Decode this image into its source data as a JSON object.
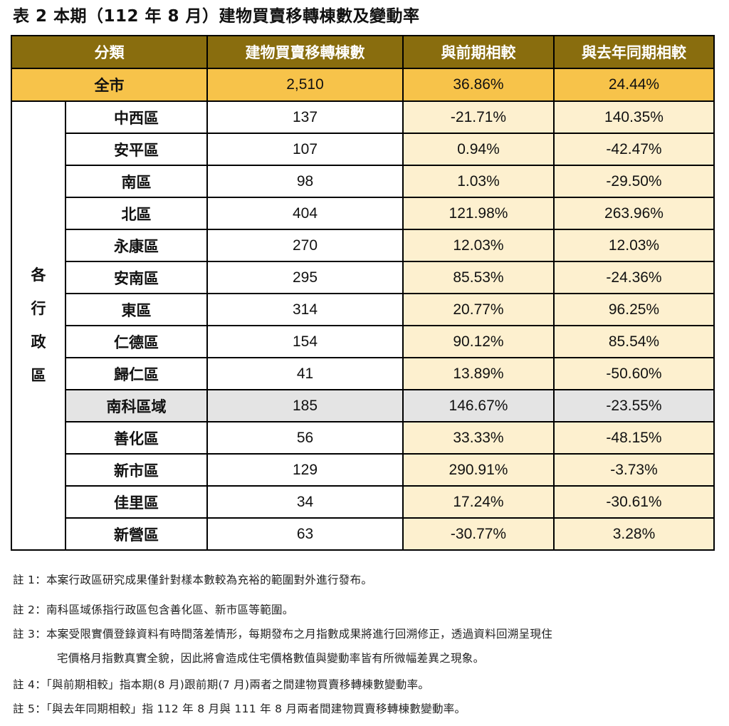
{
  "title": "表 2 本期（112 年 8 月）建物買賣移轉棟數及變動率",
  "headers": [
    "分類",
    "建物買賣移轉棟數",
    "與前期相較",
    "與去年同期相較"
  ],
  "total": {
    "name": "全市",
    "count": "2,510",
    "prev": "36.86%",
    "yoy": "24.44%"
  },
  "group_label": [
    "各",
    "行",
    "政",
    "區"
  ],
  "rows": [
    {
      "name": "中西區",
      "count": "137",
      "prev": "-21.71%",
      "yoy": "140.35%"
    },
    {
      "name": "安平區",
      "count": "107",
      "prev": "0.94%",
      "yoy": "-42.47%"
    },
    {
      "name": "南區",
      "count": "98",
      "prev": "1.03%",
      "yoy": "-29.50%"
    },
    {
      "name": "北區",
      "count": "404",
      "prev": "121.98%",
      "yoy": "263.96%"
    },
    {
      "name": "永康區",
      "count": "270",
      "prev": "12.03%",
      "yoy": "12.03%"
    },
    {
      "name": "安南區",
      "count": "295",
      "prev": "85.53%",
      "yoy": "-24.36%"
    },
    {
      "name": "東區",
      "count": "314",
      "prev": "20.77%",
      "yoy": "96.25%"
    },
    {
      "name": "仁德區",
      "count": "154",
      "prev": "90.12%",
      "yoy": "85.54%"
    },
    {
      "name": "歸仁區",
      "count": "41",
      "prev": "13.89%",
      "yoy": "-50.60%"
    },
    {
      "name": "南科區域",
      "count": "185",
      "prev": "146.67%",
      "yoy": "-23.55%"
    },
    {
      "name": "善化區",
      "count": "56",
      "prev": "33.33%",
      "yoy": "-48.15%"
    },
    {
      "name": "新市區",
      "count": "129",
      "prev": "290.91%",
      "yoy": "-3.73%"
    },
    {
      "name": "佳里區",
      "count": "34",
      "prev": "17.24%",
      "yoy": "-30.61%"
    },
    {
      "name": "新營區",
      "count": "63",
      "prev": "-30.77%",
      "yoy": "3.28%"
    }
  ],
  "notes": {
    "n1": "註 1：本案行政區研究成果僅針對樣本數較為充裕的範圍對外進行發布。",
    "n2": "註 2：南科區域係指行政區包含善化區、新市區等範圍。",
    "n3a": "註 3：本案受限實價登錄資料有時間落差情形，每期發布之月指數成果將進行回溯修正，透過資料回溯呈現住",
    "n3b": "宅價格月指數真實全貌，因此將會造成住宅價格數值與變動率皆有所微幅差異之現象。",
    "n4": "註 4：「與前期相較」指本期(8 月)跟前期(7 月)兩者之間建物買賣移轉棟數變動率。",
    "n5": "註 5：「與去年同期相較」指 112 年 8 月與 111 年 8 月兩者間建物買賣移轉棟數變動率。"
  }
}
